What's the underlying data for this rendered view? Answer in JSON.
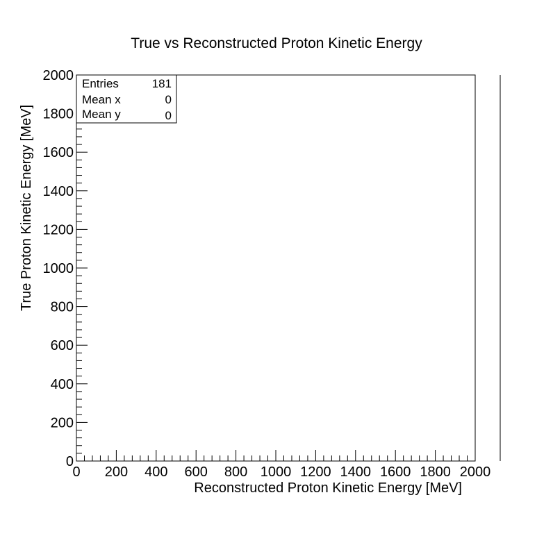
{
  "chart_data": {
    "type": "heatmap",
    "title": "True vs Reconstructed Proton Kinetic Energy",
    "xlabel": "Reconstructed Proton Kinetic Energy [MeV]",
    "ylabel": "True Proton Kinetic Energy [MeV]",
    "xlim": [
      0,
      2000
    ],
    "ylim": [
      0,
      2000
    ],
    "x_ticks": [
      "0",
      "200",
      "400",
      "600",
      "800",
      "1000",
      "1200",
      "1400",
      "1600",
      "1800",
      "2000"
    ],
    "y_ticks": [
      "0",
      "200",
      "400",
      "600",
      "800",
      "1000",
      "1200",
      "1400",
      "1600",
      "1800",
      "2000"
    ],
    "grid": false,
    "bins": [],
    "stats_box": {
      "placement": "top-left",
      "rows": [
        {
          "label": "Entries",
          "value": "181"
        },
        {
          "label": "Mean x",
          "value": "0"
        },
        {
          "label": "Mean y",
          "value": "0"
        }
      ]
    },
    "color_scale": {
      "present": true,
      "labels": []
    }
  }
}
